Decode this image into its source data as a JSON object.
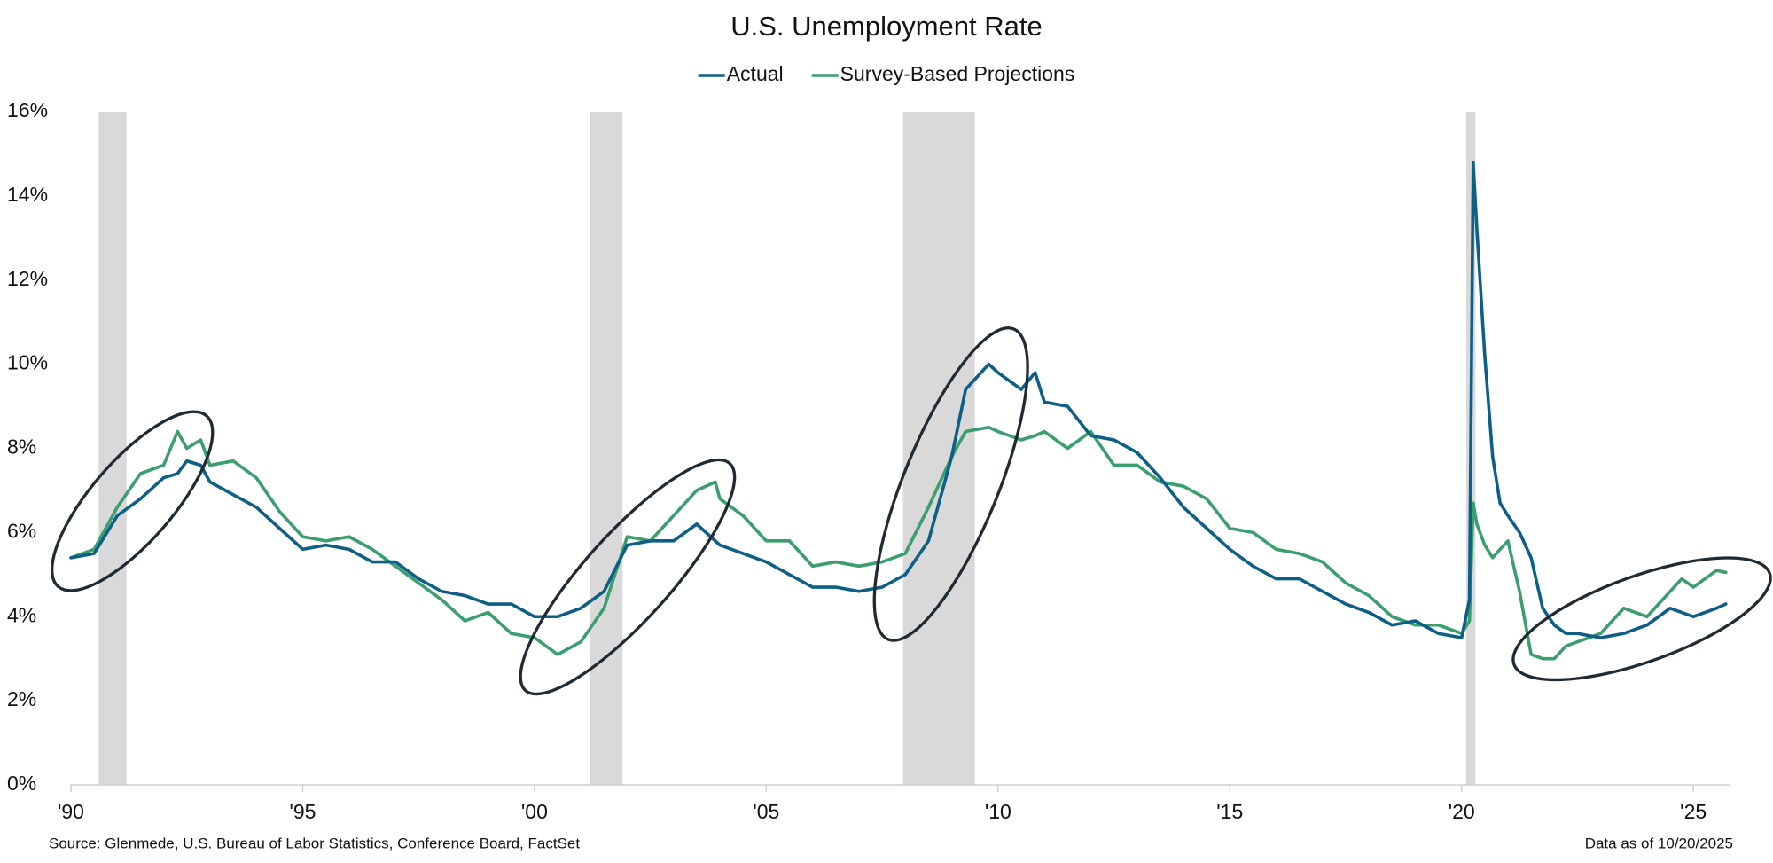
{
  "chart_data": {
    "type": "line",
    "title": "U.S. Unemployment Rate",
    "source": "Source: Glenmede, U.S. Bureau of Labor Statistics, Conference Board, FactSet",
    "data_as_of": "Data as of 10/20/2025",
    "x": [
      1990,
      1990.5,
      1991,
      1991.5,
      1992,
      1992.3,
      1992.5,
      1992.8,
      1993,
      1993.5,
      1994,
      1994.5,
      1995,
      1995.5,
      1996,
      1996.5,
      1997,
      1997.5,
      1998,
      1998.5,
      1999,
      1999.5,
      2000,
      2000.5,
      2001,
      2001.5,
      2002,
      2002.5,
      2003,
      2003.5,
      2003.9,
      2004,
      2004.5,
      2005,
      2005.5,
      2006,
      2006.5,
      2007,
      2007.5,
      2008,
      2008.5,
      2009,
      2009.3,
      2009.8,
      2010,
      2010.5,
      2010.8,
      2011,
      2011.5,
      2012,
      2012.5,
      2013,
      2013.5,
      2014,
      2014.5,
      2015,
      2015.5,
      2016,
      2016.5,
      2017,
      2017.5,
      2018,
      2018.5,
      2019,
      2019.5,
      2020,
      2020.17,
      2020.25,
      2020.33,
      2020.5,
      2020.67,
      2020.83,
      2021,
      2021.25,
      2021.5,
      2021.75,
      2022,
      2022.25,
      2022.5,
      2023,
      2023.5,
      2024,
      2024.5,
      2024.75,
      2025,
      2025.5,
      2025.7
    ],
    "series": [
      {
        "name": "Actual",
        "color": "#0e5f86",
        "values": [
          5.4,
          5.5,
          6.4,
          6.8,
          7.3,
          7.4,
          7.7,
          7.6,
          7.2,
          6.9,
          6.6,
          6.1,
          5.6,
          5.7,
          5.6,
          5.3,
          5.3,
          4.9,
          4.6,
          4.5,
          4.3,
          4.3,
          4.0,
          4.0,
          4.2,
          4.6,
          5.7,
          5.8,
          5.8,
          6.2,
          5.8,
          5.7,
          5.5,
          5.3,
          5.0,
          4.7,
          4.7,
          4.6,
          4.7,
          5.0,
          5.8,
          7.8,
          9.4,
          10.0,
          9.8,
          9.4,
          9.8,
          9.1,
          9.0,
          8.3,
          8.2,
          7.9,
          7.3,
          6.6,
          6.1,
          5.6,
          5.2,
          4.9,
          4.9,
          4.6,
          4.3,
          4.1,
          3.8,
          3.9,
          3.6,
          3.5,
          4.4,
          14.8,
          13.2,
          10.2,
          7.8,
          6.7,
          6.4,
          6.0,
          5.4,
          4.2,
          3.8,
          3.6,
          3.6,
          3.5,
          3.6,
          3.8,
          4.2,
          4.1,
          4.0,
          4.2,
          4.3
        ]
      },
      {
        "name": "Survey-Based Projections",
        "color": "#3a9e6e",
        "values": [
          5.4,
          5.6,
          6.6,
          7.4,
          7.6,
          8.4,
          8.0,
          8.2,
          7.6,
          7.7,
          7.3,
          6.5,
          5.9,
          5.8,
          5.9,
          5.6,
          5.2,
          4.8,
          4.4,
          3.9,
          4.1,
          3.6,
          3.5,
          3.1,
          3.4,
          4.2,
          5.9,
          5.8,
          6.4,
          7.0,
          7.2,
          6.8,
          6.4,
          5.8,
          5.8,
          5.2,
          5.3,
          5.2,
          5.3,
          5.5,
          6.6,
          7.8,
          8.4,
          8.5,
          8.4,
          8.2,
          8.3,
          8.4,
          8.0,
          8.4,
          7.6,
          7.6,
          7.2,
          7.1,
          6.8,
          6.1,
          6.0,
          5.6,
          5.5,
          5.3,
          4.8,
          4.5,
          4.0,
          3.8,
          3.8,
          3.6,
          3.9,
          6.7,
          6.2,
          5.7,
          5.4,
          5.6,
          5.8,
          4.6,
          3.1,
          3.0,
          3.0,
          3.3,
          3.4,
          3.6,
          4.2,
          4.0,
          4.6,
          4.9,
          4.7,
          5.1,
          5.05
        ]
      }
    ],
    "recessions": [
      {
        "start": 1990.6,
        "end": 1991.2
      },
      {
        "start": 2001.2,
        "end": 2001.9
      },
      {
        "start": 2007.95,
        "end": 2009.5
      },
      {
        "start": 2020.1,
        "end": 2020.3
      }
    ],
    "recession_color": "#d9d9d9",
    "xlim": [
      1990,
      2025.8
    ],
    "xticks": [
      {
        "value": 1990,
        "label": "'90"
      },
      {
        "value": 1995,
        "label": "'95"
      },
      {
        "value": 2000,
        "label": "'00"
      },
      {
        "value": 2005,
        "label": "'05"
      },
      {
        "value": 2010,
        "label": "'10"
      },
      {
        "value": 2015,
        "label": "'15"
      },
      {
        "value": 2020,
        "label": "'20"
      },
      {
        "value": 2025,
        "label": "'25"
      }
    ],
    "ylim": [
      0,
      16
    ],
    "yticks": [
      {
        "value": 0,
        "label": "0%"
      },
      {
        "value": 2,
        "label": "2%"
      },
      {
        "value": 4,
        "label": "4%"
      },
      {
        "value": 6,
        "label": "6%"
      },
      {
        "value": 8,
        "label": "8%"
      },
      {
        "value": 10,
        "label": "10%"
      },
      {
        "value": 12,
        "label": "12%"
      },
      {
        "value": 14,
        "label": "14%"
      },
      {
        "value": 16,
        "label": "16%"
      }
    ],
    "grid": false,
    "legend": "top"
  }
}
